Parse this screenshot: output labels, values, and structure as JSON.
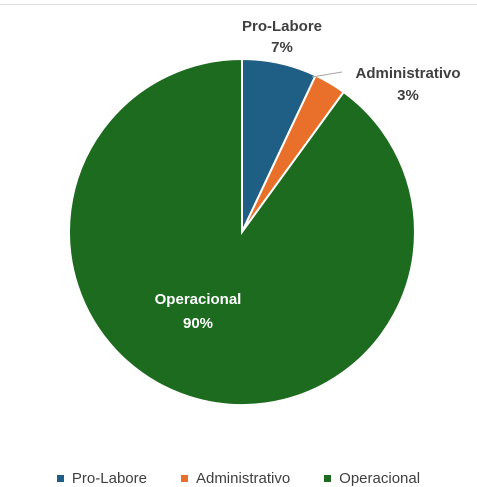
{
  "chart_data": {
    "type": "pie",
    "title": "",
    "categories": [
      "Pro-Labore",
      "Administrativo",
      "Operacional"
    ],
    "values": [
      7,
      3,
      90
    ],
    "percent_labels": [
      "7%",
      "3%",
      "90%"
    ],
    "colors": [
      "#1f5f85",
      "#e8702a",
      "#1d6b1f"
    ],
    "legend": {
      "position": "bottom",
      "entries": [
        "Pro-Labore",
        "Administrativo",
        "Operacional"
      ]
    },
    "start_angle_deg": 0,
    "direction": "clockwise"
  }
}
